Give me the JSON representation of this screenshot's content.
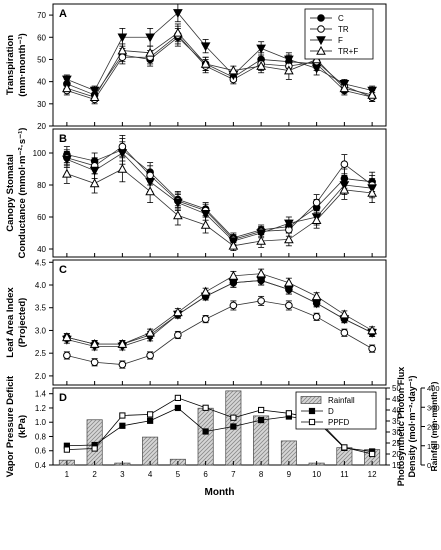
{
  "chart_data": [
    {
      "panel": "A",
      "type": "line",
      "ylabel": "Transpiration",
      "yunit": "(mm·month⁻¹)",
      "ylim": [
        20,
        75
      ],
      "yticks": [
        20,
        30,
        40,
        50,
        60,
        70
      ],
      "x": [
        1,
        2,
        3,
        4,
        5,
        6,
        7,
        8,
        9,
        10,
        11,
        12
      ],
      "legend_position": "top-right",
      "series": [
        {
          "name": "C",
          "marker": "circle-filled",
          "values": [
            39,
            34,
            52,
            50,
            60,
            48,
            42,
            50,
            49,
            48,
            36,
            33
          ],
          "err": [
            2,
            2,
            3,
            3,
            4,
            3,
            2,
            3,
            3,
            3,
            2,
            2
          ]
        },
        {
          "name": "TR",
          "marker": "circle-open",
          "values": [
            36,
            32,
            51,
            51,
            61,
            47,
            41,
            48,
            47,
            49,
            38,
            33
          ],
          "err": [
            2,
            2,
            3,
            3,
            4,
            3,
            2,
            3,
            3,
            3,
            2,
            2
          ]
        },
        {
          "name": "F",
          "marker": "triangle-down-filled",
          "values": [
            41,
            36,
            60,
            60,
            71,
            56,
            43,
            55,
            50,
            46,
            39,
            36
          ],
          "err": [
            2,
            2,
            4,
            4,
            4,
            3,
            2,
            3,
            3,
            3,
            2,
            2
          ]
        },
        {
          "name": "TR+F",
          "marker": "triangle-up-open",
          "values": [
            37,
            33,
            54,
            53,
            62,
            48,
            45,
            47,
            45,
            50,
            37,
            34
          ],
          "err": [
            2,
            2,
            3,
            3,
            4,
            3,
            2,
            3,
            4,
            3,
            2,
            2
          ]
        }
      ]
    },
    {
      "panel": "B",
      "type": "line",
      "ylabel": "Canopy Stomatal",
      "ylabel2": "Conductance (mmol·m⁻²·s⁻¹)",
      "ylim": [
        35,
        115
      ],
      "yticks": [
        40,
        60,
        80,
        100
      ],
      "x": [
        1,
        2,
        3,
        4,
        5,
        6,
        7,
        8,
        9,
        10,
        11,
        12
      ],
      "series": [
        {
          "name": "C",
          "marker": "circle-filled",
          "values": [
            99,
            95,
            102,
            88,
            71,
            65,
            47,
            52,
            54,
            66,
            84,
            82
          ],
          "err": [
            5,
            5,
            7,
            6,
            5,
            4,
            3,
            3,
            4,
            5,
            6,
            6
          ]
        },
        {
          "name": "TR",
          "marker": "circle-open",
          "values": [
            97,
            92,
            104,
            86,
            70,
            64,
            46,
            51,
            52,
            69,
            93,
            80
          ],
          "err": [
            5,
            5,
            7,
            6,
            5,
            4,
            3,
            3,
            4,
            5,
            6,
            6
          ]
        },
        {
          "name": "F",
          "marker": "triangle-down-filled",
          "values": [
            96,
            89,
            100,
            82,
            69,
            62,
            45,
            50,
            56,
            60,
            80,
            78
          ],
          "err": [
            5,
            5,
            7,
            6,
            5,
            4,
            3,
            3,
            4,
            5,
            6,
            6
          ]
        },
        {
          "name": "TR+F",
          "marker": "triangle-up-open",
          "values": [
            87,
            81,
            90,
            76,
            61,
            55,
            42,
            45,
            46,
            58,
            77,
            75
          ],
          "err": [
            6,
            6,
            8,
            7,
            6,
            5,
            3,
            4,
            4,
            5,
            6,
            6
          ]
        }
      ]
    },
    {
      "panel": "C",
      "type": "line",
      "ylabel": "Leaf Area Index",
      "ylabel2": "(Projected)",
      "ylim": [
        1.8,
        4.55
      ],
      "yticks": [
        2.0,
        2.5,
        3.0,
        3.5,
        4.0,
        4.5
      ],
      "x": [
        1,
        2,
        3,
        4,
        5,
        6,
        7,
        8,
        9,
        10,
        11,
        12
      ],
      "series": [
        {
          "name": "C",
          "marker": "circle-filled",
          "values": [
            2.85,
            2.7,
            2.7,
            2.9,
            3.35,
            3.75,
            4.05,
            4.1,
            3.9,
            3.6,
            3.25,
            2.95
          ],
          "err": [
            0.08,
            0.08,
            0.08,
            0.08,
            0.08,
            0.08,
            0.1,
            0.1,
            0.1,
            0.08,
            0.08,
            0.08
          ]
        },
        {
          "name": "TR",
          "marker": "circle-open",
          "values": [
            2.45,
            2.3,
            2.25,
            2.45,
            2.9,
            3.25,
            3.55,
            3.65,
            3.55,
            3.3,
            2.95,
            2.6
          ],
          "err": [
            0.08,
            0.08,
            0.08,
            0.08,
            0.08,
            0.08,
            0.1,
            0.1,
            0.1,
            0.08,
            0.08,
            0.08
          ]
        },
        {
          "name": "F",
          "marker": "triangle-down-filled",
          "values": [
            2.8,
            2.65,
            2.65,
            2.85,
            3.35,
            3.75,
            4.05,
            4.1,
            3.9,
            3.6,
            3.25,
            2.95
          ],
          "err": [
            0.08,
            0.08,
            0.08,
            0.08,
            0.08,
            0.08,
            0.1,
            0.1,
            0.1,
            0.08,
            0.08,
            0.08
          ]
        },
        {
          "name": "TR+F",
          "marker": "triangle-up-open",
          "values": [
            2.85,
            2.7,
            2.7,
            2.95,
            3.4,
            3.85,
            4.2,
            4.25,
            4.05,
            3.75,
            3.35,
            3.0
          ],
          "err": [
            0.08,
            0.08,
            0.08,
            0.08,
            0.08,
            0.08,
            0.1,
            0.1,
            0.1,
            0.08,
            0.08,
            0.08
          ]
        }
      ]
    },
    {
      "panel": "D",
      "type": "bar+line",
      "x": [
        1,
        2,
        3,
        4,
        5,
        6,
        7,
        8,
        9,
        10,
        11,
        12
      ],
      "xlabel": "Month",
      "legend_position": "top-right",
      "left_axis": {
        "label": "Vapor Pressure Deficit",
        "unit": "(kPa)",
        "ylim": [
          0.4,
          1.48
        ],
        "yticks": [
          0.4,
          0.6,
          0.8,
          1.0,
          1.2,
          1.4
        ]
      },
      "right_axis_1": {
        "label": "Photosynthetic Photon Flux",
        "label2": "Density (mol·m⁻²·day⁻¹)",
        "ylim": [
          15,
          50
        ],
        "yticks": [
          15,
          20,
          25,
          30,
          35,
          40,
          45,
          50
        ]
      },
      "right_axis_2": {
        "label": "Rainfall (mm·month⁻¹)",
        "ylim": [
          0,
          400
        ],
        "yticks": [
          0,
          100,
          200,
          300,
          400
        ]
      },
      "series": [
        {
          "name": "Rainfall",
          "kind": "bar",
          "axis": "right_axis_2",
          "values": [
            25,
            235,
            10,
            145,
            30,
            295,
            385,
            255,
            125,
            10,
            90,
            80
          ]
        },
        {
          "name": "D",
          "kind": "line",
          "marker": "square-filled",
          "axis": "left_axis",
          "values": [
            0.67,
            0.68,
            0.95,
            1.02,
            1.2,
            0.87,
            0.94,
            1.03,
            1.08,
            1.02,
            0.64,
            0.59
          ]
        },
        {
          "name": "PPFD",
          "kind": "line",
          "marker": "square-open",
          "axis": "right_axis_1",
          "values": [
            22,
            22.5,
            37.5,
            38,
            45.5,
            41,
            36.5,
            40,
            38.5,
            36,
            23,
            20
          ]
        }
      ]
    }
  ]
}
